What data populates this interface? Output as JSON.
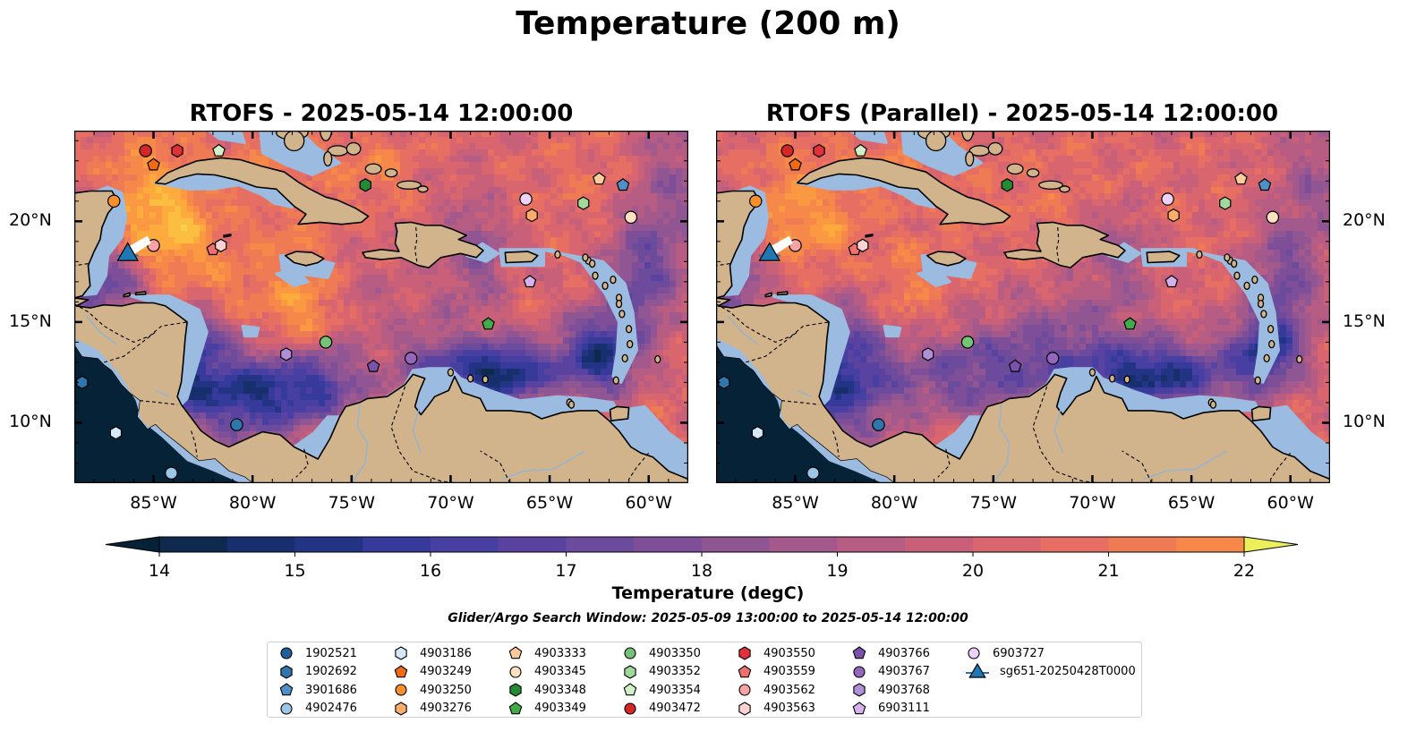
{
  "title": "Temperature (200 m)",
  "panels": [
    {
      "title": "RTOFS - 2025-05-14 12:00:00"
    },
    {
      "title": "RTOFS (Parallel) - 2025-05-14 12:00:00"
    }
  ],
  "map": {
    "lon_range": [
      -89,
      -58
    ],
    "lat_range": [
      7,
      24.5
    ],
    "lon_ticks": [
      "85°W",
      "80°W",
      "75°W",
      "70°W",
      "65°W",
      "60°W"
    ],
    "lat_ticks": [
      "20°N",
      "15°N",
      "10°N"
    ],
    "land_color": "#d2b48c",
    "shelf_color": "#9bbbe0",
    "coastline_color": "#000000",
    "borders_style": "dashed"
  },
  "colorbar": {
    "label": "Temperature (degC)",
    "min": 14,
    "max": 22,
    "step": 0.5,
    "ticks": [
      "14",
      "15",
      "16",
      "17",
      "18",
      "19",
      "20",
      "21",
      "22"
    ],
    "extend": "both",
    "colors": [
      "#052236",
      "#0d2a4e",
      "#17306d",
      "#243485",
      "#353a9b",
      "#483fa2",
      "#5a43a0",
      "#6c4a9c",
      "#7e4f98",
      "#905593",
      "#a4598c",
      "#b75d84",
      "#c9607a",
      "#d9666e",
      "#e66e62",
      "#ef7b55",
      "#f6894a",
      "#fa9942",
      "#fcab3c",
      "#fbbe40",
      "#f6d24c",
      "#ecef5a"
    ]
  },
  "search_window": "Glider/Argo Search Window: 2025-05-09 13:00:00 to 2025-05-14 12:00:00",
  "legend": [
    {
      "label": "1902521",
      "marker": "circle",
      "color": "#1f5f9c"
    },
    {
      "label": "1902692",
      "marker": "hexagon",
      "color": "#2f76ad"
    },
    {
      "label": "3901686",
      "marker": "pentagon",
      "color": "#4f90c8"
    },
    {
      "label": "4902476",
      "marker": "circle",
      "color": "#9ac6ea"
    },
    {
      "label": "4903186",
      "marker": "hexagon",
      "color": "#d3e8f8"
    },
    {
      "label": "4903249",
      "marker": "pentagon",
      "color": "#f26b12"
    },
    {
      "label": "4903250",
      "marker": "circle",
      "color": "#f9902c"
    },
    {
      "label": "4903276",
      "marker": "hexagon",
      "color": "#fcad6a"
    },
    {
      "label": "4903333",
      "marker": "pentagon",
      "color": "#fdcc9a"
    },
    {
      "label": "4903345",
      "marker": "circle",
      "color": "#fde0c2"
    },
    {
      "label": "4903348",
      "marker": "hexagon",
      "color": "#238b32"
    },
    {
      "label": "4903349",
      "marker": "pentagon",
      "color": "#41ab4a"
    },
    {
      "label": "4903350",
      "marker": "circle",
      "color": "#74c476"
    },
    {
      "label": "4903352",
      "marker": "hexagon",
      "color": "#a1d99b"
    },
    {
      "label": "4903354",
      "marker": "pentagon",
      "color": "#d2f0c8"
    },
    {
      "label": "4903472",
      "marker": "circle",
      "color": "#d62728"
    },
    {
      "label": "4903550",
      "marker": "hexagon",
      "color": "#e03038"
    },
    {
      "label": "4903559",
      "marker": "pentagon",
      "color": "#f07070"
    },
    {
      "label": "4903562",
      "marker": "circle",
      "color": "#f7a3a3"
    },
    {
      "label": "4903563",
      "marker": "hexagon",
      "color": "#fcd2d2"
    },
    {
      "label": "4903766",
      "marker": "pentagon",
      "color": "#7b52ab"
    },
    {
      "label": "4903767",
      "marker": "circle",
      "color": "#9467bd"
    },
    {
      "label": "4903768",
      "marker": "hexagon",
      "color": "#b08fd9"
    },
    {
      "label": "6903111",
      "marker": "pentagon",
      "color": "#d4b2f0"
    },
    {
      "label": "6903727",
      "marker": "circle",
      "color": "#ecd2fa"
    },
    {
      "label": "sg651-20250428T0000",
      "marker": "triangle-line",
      "color": "#1f77b4"
    }
  ],
  "glider_position": {
    "lon": -86.3,
    "lat": 18.3
  },
  "floats": [
    {
      "lon": -85.4,
      "lat": 23.5,
      "marker": "circle",
      "color": "#d62728"
    },
    {
      "lon": -83.8,
      "lat": 23.5,
      "marker": "hexagon",
      "color": "#e03038"
    },
    {
      "lon": -81.7,
      "lat": 23.5,
      "marker": "pentagon",
      "color": "#d2f0c8"
    },
    {
      "lon": -85.0,
      "lat": 22.8,
      "marker": "pentagon",
      "color": "#f26b12"
    },
    {
      "lon": -87.0,
      "lat": 21.0,
      "marker": "circle",
      "color": "#f9902c"
    },
    {
      "lon": -74.3,
      "lat": 21.8,
      "marker": "hexagon",
      "color": "#238b32"
    },
    {
      "lon": -66.2,
      "lat": 21.1,
      "marker": "circle",
      "color": "#ecd2fa"
    },
    {
      "lon": -65.9,
      "lat": 20.3,
      "marker": "hexagon",
      "color": "#fcad6a"
    },
    {
      "lon": -62.5,
      "lat": 22.1,
      "marker": "pentagon",
      "color": "#fdcc9a"
    },
    {
      "lon": -63.3,
      "lat": 20.9,
      "marker": "hexagon",
      "color": "#a1d99b"
    },
    {
      "lon": -61.3,
      "lat": 21.8,
      "marker": "pentagon",
      "color": "#4f90c8"
    },
    {
      "lon": -60.9,
      "lat": 20.2,
      "marker": "circle",
      "color": "#fde0c2"
    },
    {
      "lon": -85.0,
      "lat": 18.8,
      "marker": "circle",
      "color": "#f7a3a3"
    },
    {
      "lon": -82.0,
      "lat": 18.6,
      "marker": "pentagon",
      "color": "#f07070"
    },
    {
      "lon": -81.6,
      "lat": 18.8,
      "marker": "hexagon",
      "color": "#fcd2d2"
    },
    {
      "lon": -66.0,
      "lat": 17.0,
      "marker": "pentagon",
      "color": "#d4b2f0"
    },
    {
      "lon": -68.1,
      "lat": 14.9,
      "marker": "pentagon",
      "color": "#41ab4a"
    },
    {
      "lon": -76.3,
      "lat": 14.0,
      "marker": "circle",
      "color": "#74c476"
    },
    {
      "lon": -78.3,
      "lat": 13.4,
      "marker": "hexagon",
      "color": "#b08fd9"
    },
    {
      "lon": -73.9,
      "lat": 12.8,
      "marker": "pentagon",
      "color": "#7b52ab"
    },
    {
      "lon": -72.0,
      "lat": 13.2,
      "marker": "circle",
      "color": "#9467bd"
    },
    {
      "lon": -80.8,
      "lat": 9.9,
      "marker": "circle",
      "color": "#2f76ad"
    },
    {
      "lon": -88.6,
      "lat": 12.0,
      "marker": "hexagon",
      "color": "#2f76ad"
    },
    {
      "lon": -86.9,
      "lat": 9.5,
      "marker": "hexagon",
      "color": "#d3e8f8"
    },
    {
      "lon": -84.1,
      "lat": 7.5,
      "marker": "circle",
      "color": "#9ac6ea"
    }
  ]
}
